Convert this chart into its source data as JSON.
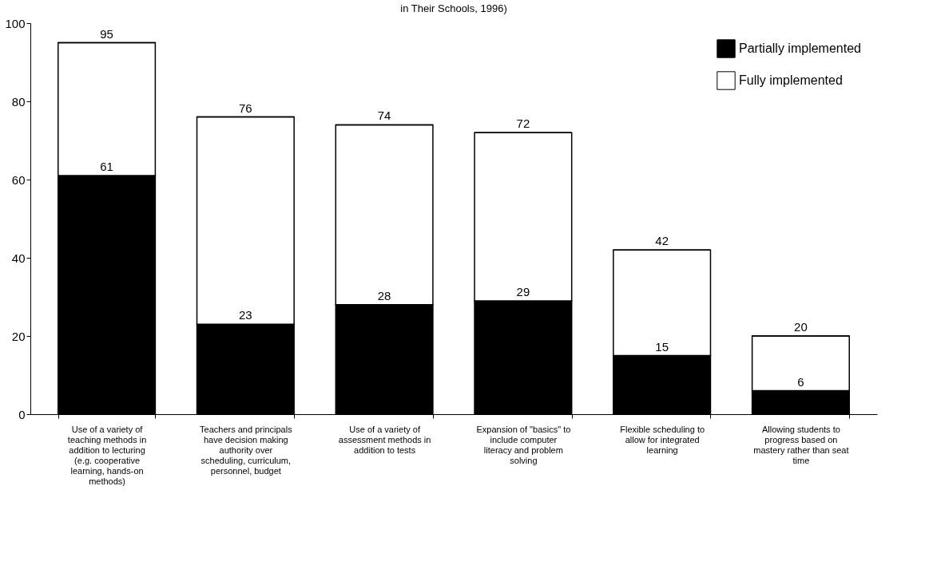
{
  "chart_data": {
    "type": "bar",
    "title": "in Their Schools, 1996)",
    "categories": [
      "Use of a variety of teaching methods in addition to lecturing (e.g. cooperative learning, hands-on methods)",
      "Teachers and principals have decision making authority over scheduling, curriculum, personnel, budget",
      "Use of a variety of assessment methods in addition to tests",
      "Expansion of \"basics\" to include computer literacy and problem solving",
      "Flexible scheduling to allow for integrated learning",
      "Allowing students to progress based on mastery rather than seat time"
    ],
    "stacked": true,
    "series": [
      {
        "name": "Partially implemented",
        "color": "#000000",
        "values": [
          61,
          23,
          28,
          29,
          15,
          6
        ],
        "value_labels": [
          "61",
          "23",
          "28",
          "29",
          "15",
          "6"
        ]
      },
      {
        "name": "Fully implemented",
        "color": "#ffffff",
        "values": [
          34,
          53,
          46,
          43,
          27,
          14
        ]
      }
    ],
    "totals": [
      "95",
      "76",
      "74",
      "72",
      "42",
      "20"
    ],
    "ylim": [
      0,
      100
    ],
    "yticks": [
      0,
      20,
      40,
      60,
      80,
      100
    ],
    "grid": false,
    "legend": "top right"
  }
}
